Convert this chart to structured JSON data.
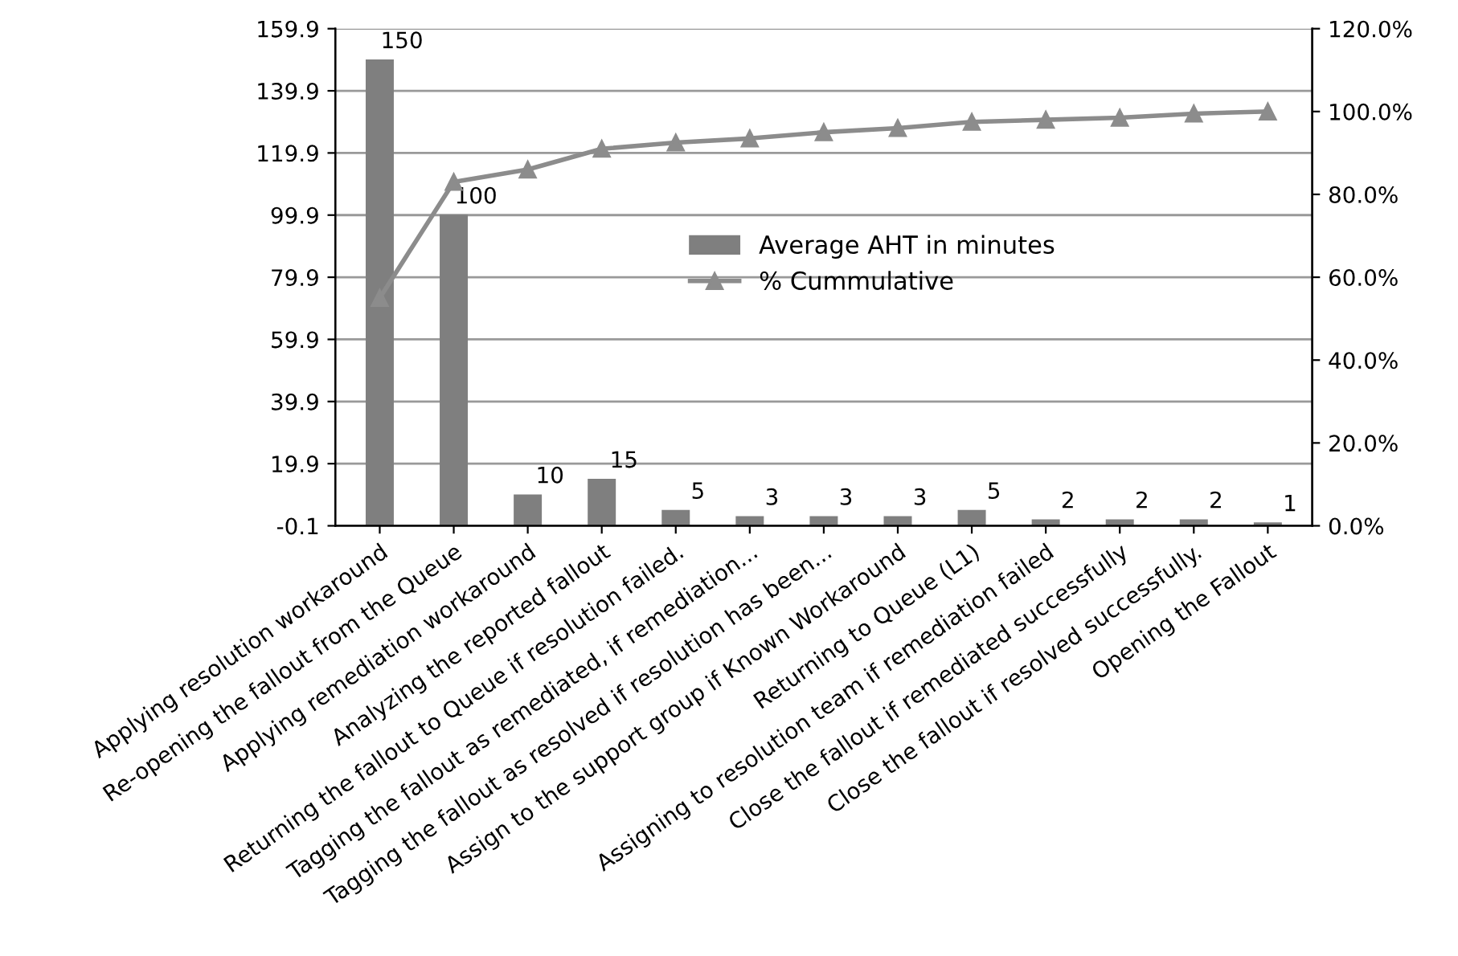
{
  "chart_data": {
    "type": "bar",
    "categories": [
      "Applying resolution workaround",
      "Re-opening the fallout from the Queue",
      "Applying remediation workaround",
      "Analyzing the reported fallout",
      "Returning the fallout to Queue if resolution failed.",
      "Tagging the fallout as remediated, if remediation...",
      "Tagging the fallout as resolved if resolution has been...",
      "Assign to the support group if Known Workaround",
      "Returning to Queue (L1)",
      "Assigning to resolution team if remediation failed",
      "Close the fallout if remediated successfully",
      "Close the fallout if resolved successfully.",
      "Opening the Fallout"
    ],
    "series": [
      {
        "name": "Average AHT in minutes",
        "color": "#7f7f7f",
        "data_labels": true,
        "values": [
          150,
          100,
          10,
          15,
          5,
          3,
          3,
          3,
          5,
          2,
          2,
          2,
          1
        ]
      },
      {
        "name": "% Cummulative",
        "type": "line",
        "axis": "y2",
        "color": "#8c8c8c",
        "marker": "triangle",
        "values": [
          55,
          83,
          86,
          91,
          92.5,
          93.5,
          95,
          96,
          97.5,
          98,
          98.5,
          99.5,
          100
        ]
      }
    ],
    "ylim": [
      -0.1,
      159.9
    ],
    "yticks": [
      -0.1,
      19.9,
      39.9,
      59.9,
      79.9,
      99.9,
      119.9,
      139.9,
      159.9
    ],
    "y2lim": [
      0,
      120
    ],
    "y2ticks": [
      {
        "value": 0,
        "label": "0.0%"
      },
      {
        "value": 20,
        "label": "20.0%"
      },
      {
        "value": 40,
        "label": "40.0%"
      },
      {
        "value": 60,
        "label": "60.0%"
      },
      {
        "value": 80,
        "label": "80.0%"
      },
      {
        "value": 100,
        "label": "100.0%"
      },
      {
        "value": 120,
        "label": "120.0%"
      }
    ],
    "grid": "y",
    "legend": "center"
  }
}
